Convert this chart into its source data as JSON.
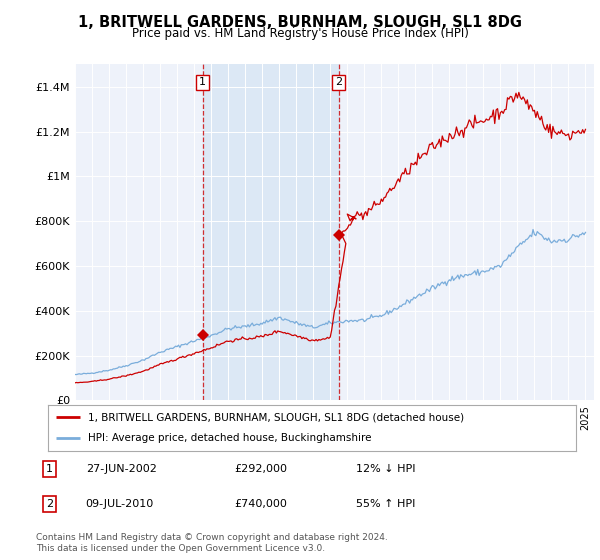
{
  "title": "1, BRITWELL GARDENS, BURNHAM, SLOUGH, SL1 8DG",
  "subtitle": "Price paid vs. HM Land Registry's House Price Index (HPI)",
  "ylim": [
    0,
    1500000
  ],
  "yticks": [
    0,
    200000,
    400000,
    600000,
    800000,
    1000000,
    1200000,
    1400000
  ],
  "ytick_labels": [
    "£0",
    "£200K",
    "£400K",
    "£600K",
    "£800K",
    "£1M",
    "£1.2M",
    "£1.4M"
  ],
  "plot_bg_color": "#eef2fa",
  "line1_color": "#cc0000",
  "line2_color": "#7aaddb",
  "shade_color": "#dce8f5",
  "vline_color": "#cc0000",
  "legend_line1": "1, BRITWELL GARDENS, BURNHAM, SLOUGH, SL1 8DG (detached house)",
  "legend_line2": "HPI: Average price, detached house, Buckinghamshire",
  "transaction1_date": "27-JUN-2002",
  "transaction1_price": "£292,000",
  "transaction1_pct": "12% ↓ HPI",
  "transaction2_date": "09-JUL-2010",
  "transaction2_price": "£740,000",
  "transaction2_pct": "55% ↑ HPI",
  "vline1_x": 2002.5,
  "vline2_x": 2010.5,
  "marker1_year": 2002.5,
  "marker1_val": 292000,
  "marker2_year": 2010.5,
  "marker2_val": 740000,
  "footer": "Contains HM Land Registry data © Crown copyright and database right 2024.\nThis data is licensed under the Open Government Licence v3.0.",
  "xmin": 1995.0,
  "xmax": 2025.5
}
